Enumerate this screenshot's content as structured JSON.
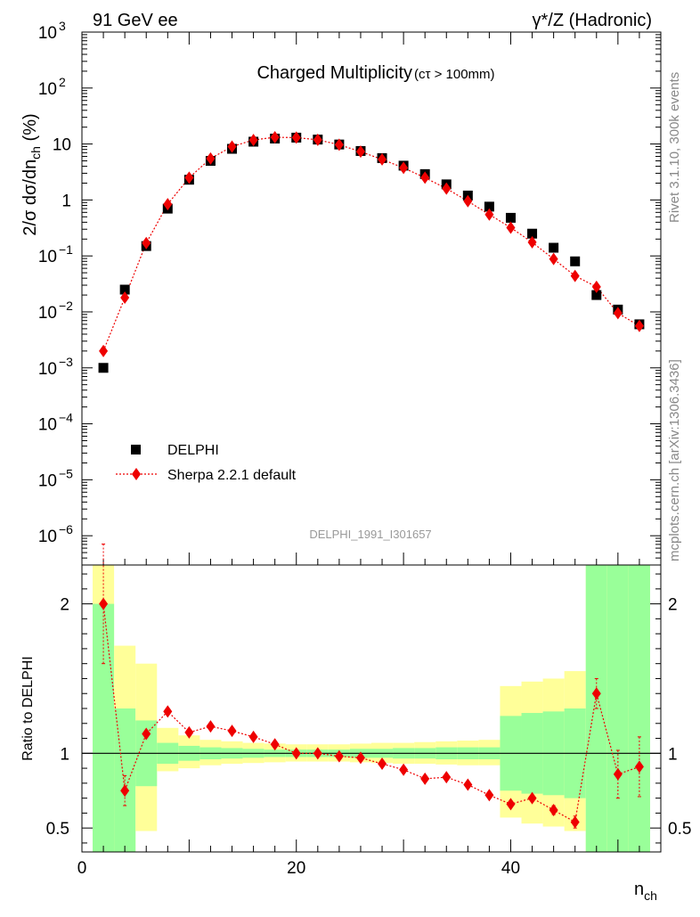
{
  "header": {
    "left": "91 GeV ee",
    "right": "γ*/Z (Hadronic)"
  },
  "side_labels": {
    "rivet": "Rivet 3.1.10,  300k events",
    "mcplots": "mcplots.cern.ch [arXiv:1306.3436]"
  },
  "chart_data": [
    {
      "type": "scatter",
      "title": "Charged Multiplicity",
      "subtitle": "(cτ > 100mm)",
      "ylabel_main": "2/σ dσ/dn",
      "ylabel_sub": "ch",
      "ylabel_unit": " (%)",
      "yscale": "log",
      "ylim": [
        3e-07,
        1000
      ],
      "xlim": [
        0,
        54
      ],
      "analysis_id": "DELPHI_1991_I301657",
      "y_ticks": [
        {
          "value": 1000,
          "base": "10",
          "exp": "3"
        },
        {
          "value": 100,
          "base": "10",
          "exp": "2"
        },
        {
          "value": 10,
          "base": "10",
          "exp": ""
        },
        {
          "value": 1,
          "base": "1",
          "exp": ""
        },
        {
          "value": 0.1,
          "base": "10",
          "exp": "−1"
        },
        {
          "value": 0.01,
          "base": "10",
          "exp": "−2"
        },
        {
          "value": 0.001,
          "base": "10",
          "exp": "−3"
        },
        {
          "value": 0.0001,
          "base": "10",
          "exp": "−4"
        },
        {
          "value": 1e-05,
          "base": "10",
          "exp": "−5"
        },
        {
          "value": 1e-06,
          "base": "10",
          "exp": "−6"
        }
      ],
      "legend_position": "lower-left",
      "series": [
        {
          "name": "DELPHI",
          "color": "#000000",
          "marker": "square",
          "x": [
            2,
            4,
            6,
            8,
            10,
            12,
            14,
            16,
            18,
            20,
            22,
            24,
            26,
            28,
            30,
            32,
            34,
            36,
            38,
            40,
            42,
            44,
            46,
            48,
            50,
            52
          ],
          "y": [
            0.001,
            0.025,
            0.15,
            0.7,
            2.3,
            5.0,
            8.2,
            11.0,
            12.5,
            13.0,
            12.0,
            9.8,
            7.5,
            5.6,
            4.1,
            2.9,
            1.9,
            1.2,
            0.76,
            0.48,
            0.25,
            0.14,
            0.08,
            0.02,
            0.011,
            0.006
          ]
        },
        {
          "name": "Sherpa 2.2.1 default",
          "color": "#ee0000",
          "marker": "diamond",
          "line": "dotted",
          "x": [
            2,
            4,
            6,
            8,
            10,
            12,
            14,
            16,
            18,
            20,
            22,
            24,
            26,
            28,
            30,
            32,
            34,
            36,
            38,
            40,
            42,
            44,
            46,
            48,
            50,
            52
          ],
          "y": [
            0.002,
            0.018,
            0.17,
            0.84,
            2.5,
            5.5,
            9.0,
            11.8,
            13.2,
            13.0,
            11.9,
            9.7,
            7.3,
            5.3,
            3.75,
            2.5,
            1.6,
            0.95,
            0.55,
            0.32,
            0.175,
            0.088,
            0.044,
            0.028,
            0.0095,
            0.0056
          ]
        }
      ]
    },
    {
      "type": "scatter",
      "ylabel": "Ratio to DELPHI",
      "xlabel_main": "n",
      "xlabel_sub": "ch",
      "yscale": "linear",
      "ylim": [
        0.34,
        2.26
      ],
      "xlim": [
        0,
        54
      ],
      "x_ticks": [
        0,
        20,
        40
      ],
      "y_ticks": [
        0.5,
        1,
        2
      ],
      "band_colors": {
        "inner": "#99ff99",
        "outer": "#ffff99"
      },
      "bands": {
        "x_edges": [
          1,
          3,
          5,
          7,
          9,
          11,
          13,
          15,
          17,
          19,
          21,
          23,
          25,
          27,
          29,
          31,
          33,
          35,
          37,
          39,
          41,
          43,
          45,
          47,
          49,
          51,
          53
        ],
        "inner_low": [
          0.3,
          0.3,
          0.78,
          0.93,
          0.95,
          0.96,
          0.965,
          0.97,
          0.975,
          0.975,
          0.975,
          0.975,
          0.97,
          0.97,
          0.965,
          0.965,
          0.96,
          0.96,
          0.96,
          0.75,
          0.73,
          0.72,
          0.7,
          0.3,
          0.3,
          0.3
        ],
        "inner_high": [
          2.0,
          1.3,
          1.22,
          1.07,
          1.05,
          1.04,
          1.035,
          1.03,
          1.025,
          1.025,
          1.025,
          1.025,
          1.03,
          1.03,
          1.035,
          1.035,
          1.04,
          1.04,
          1.04,
          1.25,
          1.27,
          1.28,
          1.3,
          2.5,
          2.5,
          2.5
        ],
        "outer_low": [
          0.3,
          0.3,
          0.48,
          0.88,
          0.9,
          0.92,
          0.93,
          0.935,
          0.94,
          0.945,
          0.945,
          0.945,
          0.94,
          0.935,
          0.93,
          0.93,
          0.925,
          0.92,
          0.92,
          0.57,
          0.53,
          0.51,
          0.48,
          0.3,
          0.3,
          0.3
        ],
        "outer_high": [
          2.5,
          1.72,
          1.6,
          1.17,
          1.12,
          1.09,
          1.08,
          1.07,
          1.065,
          1.06,
          1.06,
          1.06,
          1.065,
          1.07,
          1.07,
          1.075,
          1.08,
          1.085,
          1.09,
          1.45,
          1.48,
          1.5,
          1.55,
          2.5,
          2.5,
          2.5
        ]
      },
      "series": [
        {
          "name": "Sherpa 2.2.1 default",
          "color": "#ee0000",
          "x": [
            2,
            4,
            6,
            8,
            10,
            12,
            14,
            16,
            18,
            20,
            22,
            24,
            26,
            28,
            30,
            32,
            34,
            36,
            38,
            40,
            42,
            44,
            46,
            48,
            50,
            52
          ],
          "y": [
            2.0,
            0.75,
            1.13,
            1.28,
            1.14,
            1.18,
            1.15,
            1.11,
            1.06,
            1.0,
            1.0,
            0.98,
            0.97,
            0.93,
            0.89,
            0.83,
            0.84,
            0.79,
            0.72,
            0.66,
            0.7,
            0.62,
            0.54,
            1.4,
            0.86,
            0.91
          ],
          "err_low": [
            0.4,
            0.1,
            0.02,
            0.01,
            0.01,
            0.01,
            0.01,
            0.01,
            0.01,
            0.005,
            0.005,
            0.005,
            0.01,
            0.01,
            0.01,
            0.01,
            0.01,
            0.015,
            0.015,
            0.02,
            0.02,
            0.03,
            0.04,
            0.1,
            0.16,
            0.2
          ],
          "err_high": [
            0.4,
            0.1,
            0.02,
            0.01,
            0.01,
            0.01,
            0.01,
            0.01,
            0.01,
            0.005,
            0.005,
            0.005,
            0.01,
            0.01,
            0.01,
            0.01,
            0.01,
            0.015,
            0.015,
            0.02,
            0.02,
            0.03,
            0.04,
            0.1,
            0.16,
            0.2
          ]
        }
      ]
    }
  ]
}
